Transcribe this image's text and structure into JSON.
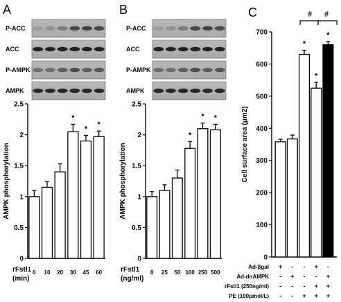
{
  "panels": [
    {
      "letter": "A",
      "blots": [
        "P-ACC",
        "ACC",
        "P-AMPK",
        "AMPK"
      ],
      "treatment_label": [
        "rFstl1",
        "(min)"
      ]
    },
    {
      "letter": "B",
      "blots": [
        "P-ACC",
        "ACC",
        "P-AMPK",
        "AMPK"
      ],
      "treatment_label": [
        "rFstl1",
        "(ng/ml)"
      ]
    },
    {
      "letter": "C",
      "conditions": [
        {
          "label": "Ad-βgal",
          "signs": [
            "+",
            "-",
            "-",
            "+",
            "-"
          ]
        },
        {
          "label": "Ad-dnAMPK",
          "signs": [
            "-",
            "+",
            "-",
            "-",
            "+"
          ]
        },
        {
          "label": "rFstl1 (250ng/ml)",
          "signs": [
            "-",
            "-",
            "-",
            "+",
            "+"
          ]
        },
        {
          "label": "PE (100μmol/L)",
          "signs": [
            "-",
            "-",
            "+",
            "+",
            "+"
          ]
        }
      ],
      "hash_marks": [
        "#",
        "#"
      ]
    }
  ],
  "chart_data": [
    {
      "type": "bar",
      "categories": [
        "0",
        "10",
        "20",
        "30",
        "45",
        "60"
      ],
      "values": [
        1.0,
        1.15,
        1.4,
        2.05,
        1.9,
        1.97
      ],
      "errors": [
        0.1,
        0.09,
        0.13,
        0.12,
        0.09,
        0.09
      ],
      "significant": [
        "",
        "",
        "",
        "*",
        "*",
        "*"
      ],
      "ylabel": "AMPK phosphorylation",
      "ylim": [
        0,
        2.5
      ],
      "yticks": [
        "0",
        "0.5",
        "1",
        "1.5",
        "2",
        "2.5"
      ]
    },
    {
      "type": "bar",
      "categories": [
        "0",
        "25",
        "50",
        "100",
        "250",
        "500"
      ],
      "values": [
        1.0,
        1.1,
        1.3,
        1.78,
        2.1,
        2.08
      ],
      "errors": [
        0.08,
        0.09,
        0.13,
        0.11,
        0.09,
        0.09
      ],
      "significant": [
        "",
        "",
        "",
        "*",
        "*",
        "*"
      ],
      "ylabel": "AMPK phosphorylation",
      "ylim": [
        0,
        2.5
      ],
      "yticks": [
        "0",
        "0.5",
        "1",
        "1.5",
        "2",
        "2.5"
      ]
    },
    {
      "type": "bar",
      "categories": [
        "1",
        "2",
        "3",
        "4",
        "5"
      ],
      "values": [
        358,
        367,
        630,
        525,
        660
      ],
      "errors": [
        8,
        12,
        13,
        18,
        10
      ],
      "fills": [
        "#ffffff",
        "#ffffff",
        "#ffffff",
        "#ffffff",
        "#000000"
      ],
      "significant": [
        "",
        "",
        "*",
        "*",
        "*"
      ],
      "ylabel": "Cell surface area (μm2)",
      "ylim": [
        0,
        700
      ],
      "yticks": [
        "0",
        "100",
        "200",
        "300",
        "400",
        "500",
        "600",
        "700"
      ]
    }
  ]
}
